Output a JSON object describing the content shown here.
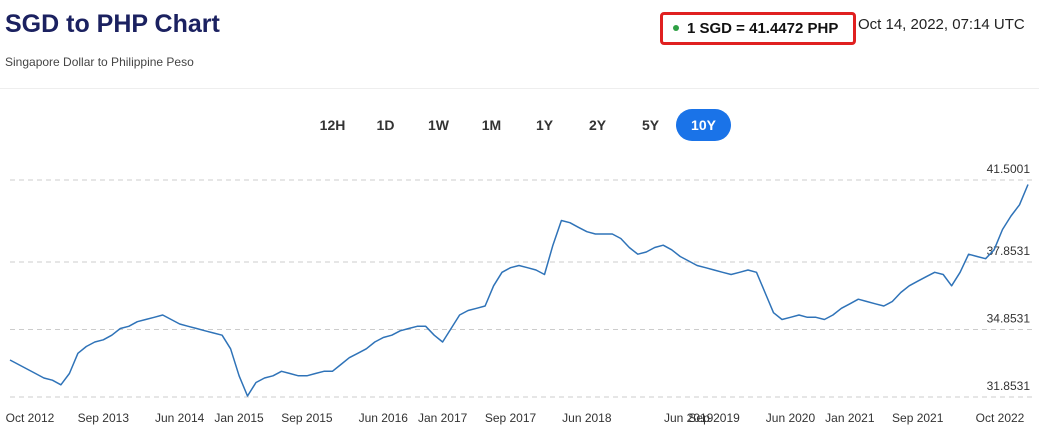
{
  "header": {
    "title": "SGD to PHP Chart",
    "subtitle": "Singapore Dollar to Philippine Peso",
    "rate": "1 SGD = 41.4472 PHP",
    "timestamp": "Oct 14, 2022, 07:14 UTC"
  },
  "range_buttons": [
    "12H",
    "1D",
    "1W",
    "1M",
    "1Y",
    "2Y",
    "5Y",
    "10Y"
  ],
  "active_range": "10Y",
  "chart_data": {
    "type": "line",
    "x": [
      "Oct 2012",
      "Nov 2012",
      "Dec 2012",
      "Jan 2013",
      "Feb 2013",
      "Mar 2013",
      "Apr 2013",
      "May 2013",
      "Jun 2013",
      "Jul 2013",
      "Aug 2013",
      "Sep 2013",
      "Oct 2013",
      "Nov 2013",
      "Dec 2013",
      "Jan 2014",
      "Feb 2014",
      "Mar 2014",
      "Apr 2014",
      "May 2014",
      "Jun 2014",
      "Jul 2014",
      "Aug 2014",
      "Sep 2014",
      "Oct 2014",
      "Nov 2014",
      "Dec 2014",
      "Jan 2015",
      "Feb 2015",
      "Mar 2015",
      "Apr 2015",
      "May 2015",
      "Jun 2015",
      "Jul 2015",
      "Aug 2015",
      "Sep 2015",
      "Oct 2015",
      "Nov 2015",
      "Dec 2015",
      "Jan 2016",
      "Feb 2016",
      "Mar 2016",
      "Apr 2016",
      "May 2016",
      "Jun 2016",
      "Jul 2016",
      "Aug 2016",
      "Sep 2016",
      "Oct 2016",
      "Nov 2016",
      "Dec 2016",
      "Jan 2017",
      "Feb 2017",
      "Mar 2017",
      "Apr 2017",
      "May 2017",
      "Jun 2017",
      "Jul 2017",
      "Aug 2017",
      "Sep 2017",
      "Oct 2017",
      "Nov 2017",
      "Dec 2017",
      "Jan 2018",
      "Feb 2018",
      "Mar 2018",
      "Apr 2018",
      "May 2018",
      "Jun 2018",
      "Jul 2018",
      "Aug 2018",
      "Sep 2018",
      "Oct 2018",
      "Nov 2018",
      "Dec 2018",
      "Jan 2019",
      "Feb 2019",
      "Mar 2019",
      "Apr 2019",
      "May 2019",
      "Jun 2019",
      "Jul 2019",
      "Aug 2019",
      "Sep 2019",
      "Oct 2019",
      "Nov 2019",
      "Dec 2019",
      "Jan 2020",
      "Feb 2020",
      "Mar 2020",
      "Apr 2020",
      "May 2020",
      "Jun 2020",
      "Jul 2020",
      "Aug 2020",
      "Sep 2020",
      "Oct 2020",
      "Nov 2020",
      "Dec 2020",
      "Jan 2021",
      "Feb 2021",
      "Mar 2021",
      "Apr 2021",
      "May 2021",
      "Jun 2021",
      "Jul 2021",
      "Aug 2021",
      "Sep 2021",
      "Oct 2021",
      "Nov 2021",
      "Dec 2021",
      "Jan 2022",
      "Feb 2022",
      "Mar 2022",
      "Apr 2022",
      "May 2022",
      "Jun 2022",
      "Jul 2022",
      "Aug 2022",
      "Sep 2022",
      "Oct 2022"
    ],
    "values": [
      33.5,
      33.3,
      33.1,
      32.9,
      32.7,
      32.6,
      32.4,
      32.9,
      33.8,
      34.1,
      34.3,
      34.4,
      34.6,
      34.9,
      35.0,
      35.2,
      35.3,
      35.4,
      35.5,
      35.3,
      35.1,
      35.0,
      34.9,
      34.8,
      34.7,
      34.6,
      34.0,
      32.8,
      31.9,
      32.5,
      32.7,
      32.8,
      33.0,
      32.9,
      32.8,
      32.8,
      32.9,
      33.0,
      33.0,
      33.3,
      33.6,
      33.8,
      34.0,
      34.3,
      34.5,
      34.6,
      34.8,
      34.9,
      35.0,
      35.0,
      34.6,
      34.3,
      34.9,
      35.5,
      35.7,
      35.8,
      35.9,
      36.8,
      37.4,
      37.6,
      37.7,
      37.6,
      37.5,
      37.3,
      38.6,
      39.7,
      39.6,
      39.4,
      39.2,
      39.1,
      39.1,
      39.1,
      38.9,
      38.5,
      38.2,
      38.3,
      38.5,
      38.6,
      38.4,
      38.1,
      37.9,
      37.7,
      37.6,
      37.5,
      37.4,
      37.3,
      37.4,
      37.5,
      37.4,
      36.5,
      35.6,
      35.3,
      35.4,
      35.5,
      35.4,
      35.4,
      35.3,
      35.5,
      35.8,
      36.0,
      36.2,
      36.1,
      36.0,
      35.9,
      36.1,
      36.5,
      36.8,
      37.0,
      37.2,
      37.4,
      37.3,
      36.8,
      37.4,
      38.2,
      38.1,
      38.0,
      38.4,
      39.3,
      39.9,
      40.4,
      41.3
    ],
    "color": "#2f73b8",
    "xticks": [
      "Oct 2012",
      "Sep 2013",
      "Jun 2014",
      "Jan 2015",
      "Sep 2015",
      "Jun 2016",
      "Jan 2017",
      "Sep 2017",
      "Jun 2018",
      "Jun 2019",
      "Sep 2019",
      "Jun 2020",
      "Jan 2021",
      "Sep 2021",
      "Oct 2022"
    ],
    "ylim": [
      31.5,
      41.9
    ],
    "yticks": [
      31.8531,
      34.8531,
      37.8531,
      41.5001
    ],
    "grid": true
  }
}
